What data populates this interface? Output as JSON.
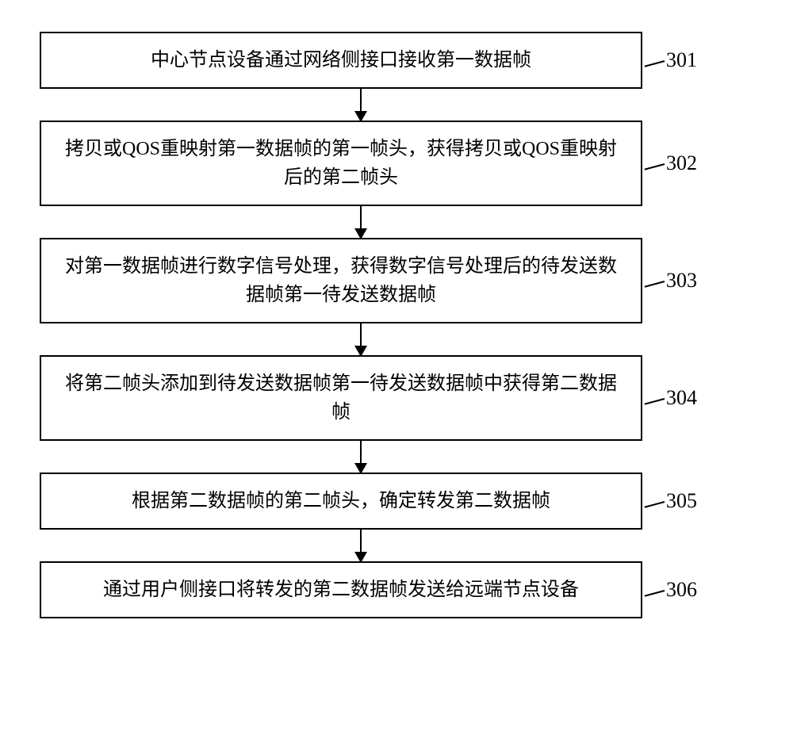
{
  "flowchart": {
    "type": "flowchart",
    "background_color": "#ffffff",
    "box_border_color": "#000000",
    "box_border_width": 2,
    "text_color": "#000000",
    "font_family": "SimSun",
    "box_fontsize": 24,
    "label_fontsize": 26,
    "arrow_color": "#000000",
    "arrow_width": 2,
    "arrow_spacing": 40,
    "steps": [
      {
        "text": "中心节点设备通过网络侧接口接收第一数据帧",
        "label": "301"
      },
      {
        "text": "拷贝或QOS重映射第一数据帧的第一帧头，获得拷贝或QOS重映射后的第二帧头",
        "label": "302"
      },
      {
        "text": "对第一数据帧进行数字信号处理，获得数字信号处理后的待发送数据帧第一待发送数据帧",
        "label": "303"
      },
      {
        "text": "将第二帧头添加到待发送数据帧第一待发送数据帧中获得第二数据帧",
        "label": "304"
      },
      {
        "text": "根据第二数据帧的第二帧头，确定转发第二数据帧",
        "label": "305"
      },
      {
        "text": "通过用户侧接口将转发的第二数据帧发送给远端节点设备",
        "label": "306"
      }
    ]
  }
}
